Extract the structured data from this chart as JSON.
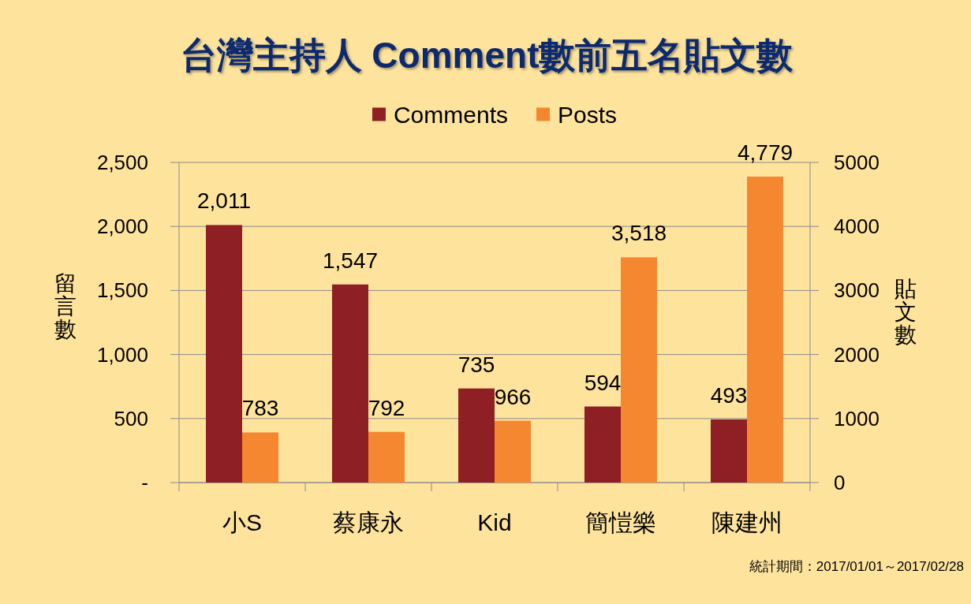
{
  "chart_data": {
    "type": "bar",
    "title": "台灣主持人 Comment數前五名貼文數",
    "categories": [
      "小S",
      "蔡康永",
      "Kid",
      "簡愷樂",
      "陳建州"
    ],
    "series": [
      {
        "name": "Comments",
        "color": "#8e1f24",
        "values": [
          2011,
          1547,
          735,
          594,
          493
        ],
        "value_labels": [
          "2,011",
          "1,547",
          "735",
          "594",
          "493"
        ]
      },
      {
        "name": "Posts",
        "color": "#f58731",
        "axis": "y2",
        "values": [
          783,
          792,
          966,
          3518,
          4779
        ],
        "value_labels": [
          "783",
          "792",
          "966",
          "3,518",
          "4,779"
        ]
      }
    ],
    "ylabel": "留言數",
    "y2label": "貼文數",
    "ylim": [
      0,
      2500
    ],
    "yticks": [
      {
        "value": 0,
        "label": "-"
      },
      500,
      {
        "value": 1000,
        "label": "1,000"
      },
      {
        "value": 1500,
        "label": "1,500"
      },
      {
        "value": 2000,
        "label": "2,000"
      },
      {
        "value": 2500,
        "label": "2,500"
      }
    ],
    "y2lim": [
      0,
      5000
    ],
    "y2ticks": [
      0,
      1000,
      2000,
      3000,
      4000,
      5000
    ],
    "grid": "y",
    "legend": "top",
    "annotations": [
      "統計期間：2017/01/01～2017/02/28"
    ]
  }
}
